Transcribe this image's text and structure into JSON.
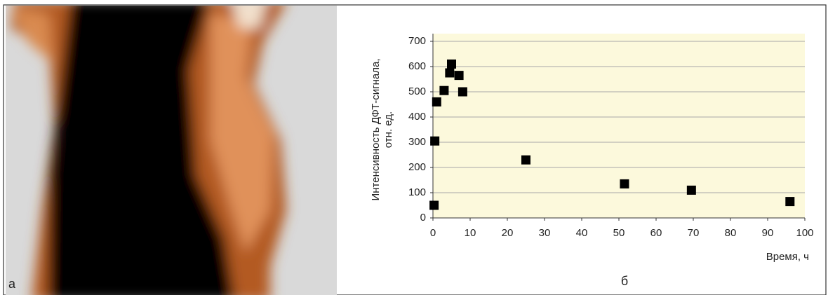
{
  "panel_labels": [
    "а",
    "б"
  ],
  "chart_data": {
    "type": "scatter",
    "x_label": "Время, ч",
    "y_label": [
      "Интенсивность ДФТ-сигнала,",
      "отн. ед."
    ],
    "x": [
      0.3,
      0.5,
      1,
      3,
      4.5,
      5,
      7,
      8,
      25,
      51.5,
      69.5,
      96
    ],
    "values": [
      50,
      305,
      460,
      505,
      575,
      610,
      565,
      500,
      230,
      135,
      110,
      65
    ],
    "color": "#000000",
    "plot_background": "#fcf9dc",
    "xlim": [
      0,
      100
    ],
    "xticks": [
      0,
      10,
      20,
      30,
      40,
      50,
      60,
      70,
      80,
      90,
      100
    ],
    "ylim": [
      0,
      700
    ],
    "yticks": [
      0,
      100,
      200,
      300,
      400,
      500,
      600,
      700
    ],
    "grid": true
  }
}
